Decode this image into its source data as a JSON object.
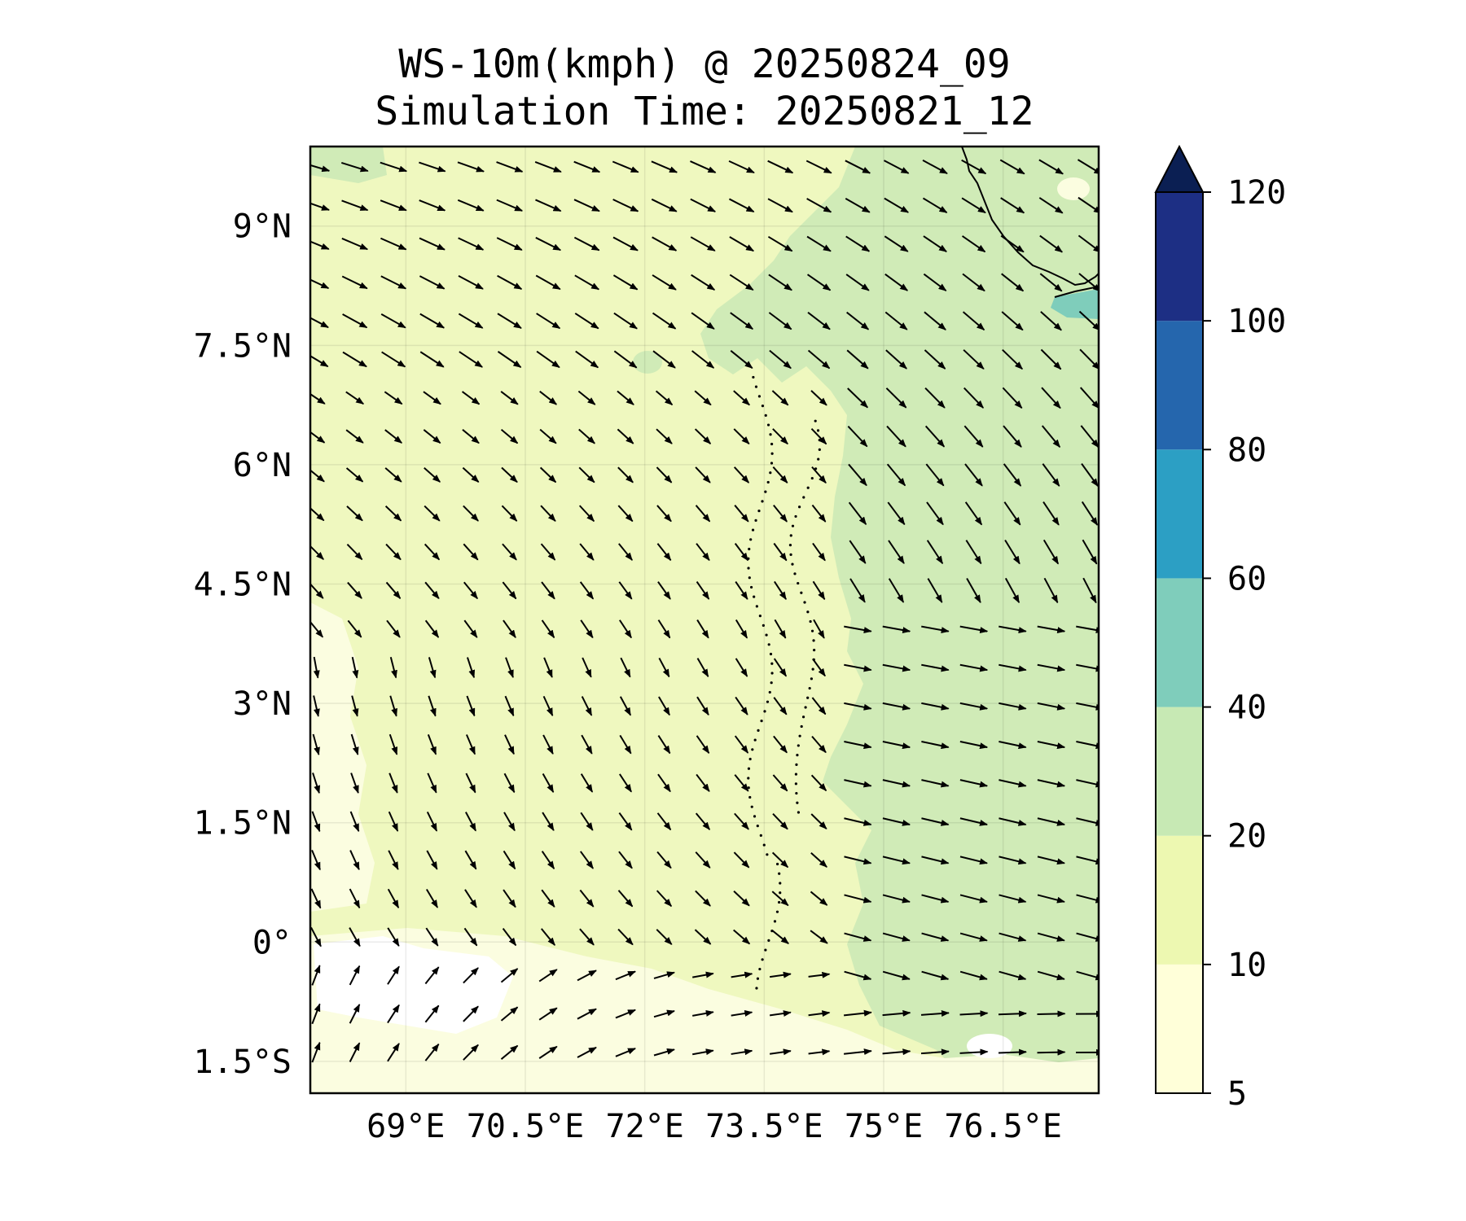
{
  "title": {
    "line1": "WS-10m(kmph) @ 20250824_09",
    "line2": "Simulation Time: 20250821_12"
  },
  "map": {
    "variable": "10 m wind speed (kmph) with wind direction arrows",
    "lon_range": [
      67.8,
      77.7
    ],
    "lat_range": [
      -1.9,
      10.0
    ],
    "lat_ticks": [
      {
        "value": 9,
        "label": "9°N"
      },
      {
        "value": 7.5,
        "label": "7.5°N"
      },
      {
        "value": 6,
        "label": "6°N"
      },
      {
        "value": 4.5,
        "label": "4.5°N"
      },
      {
        "value": 3,
        "label": "3°N"
      },
      {
        "value": 1.5,
        "label": "1.5°N"
      },
      {
        "value": 0,
        "label": "0°"
      },
      {
        "value": -1.5,
        "label": "1.5°S"
      }
    ],
    "lon_ticks": [
      {
        "value": 69,
        "label": "69°E"
      },
      {
        "value": 70.5,
        "label": "70.5°E"
      },
      {
        "value": 72,
        "label": "72°E"
      },
      {
        "value": 73.5,
        "label": "73.5°E"
      },
      {
        "value": 75,
        "label": "75°E"
      },
      {
        "value": 76.5,
        "label": "76.5°E"
      }
    ],
    "gridlines": true,
    "coastline": "southern India / Sri Lanka coast at top-right, Maldives atolls along 73.5°E"
  },
  "colorbar": {
    "levels": [
      {
        "value": 5,
        "label": "5"
      },
      {
        "value": 10,
        "label": "10"
      },
      {
        "value": 20,
        "label": "20"
      },
      {
        "value": 40,
        "label": "40"
      },
      {
        "value": 60,
        "label": "60"
      },
      {
        "value": 80,
        "label": "80"
      },
      {
        "value": 100,
        "label": "100"
      },
      {
        "value": 120,
        "label": "120"
      }
    ],
    "colors": [
      "#ffffd9",
      "#edf8b1",
      "#c7e9b4",
      "#7fcdbb",
      "#2c9fc4",
      "#2566ad",
      "#1d2f84"
    ],
    "extend_color": "#0b1f53",
    "extend": "max"
  }
}
